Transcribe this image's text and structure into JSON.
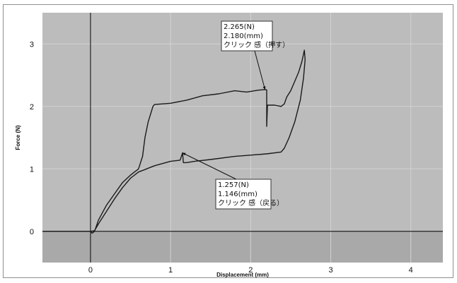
{
  "chart_data": {
    "type": "line",
    "title": "",
    "xlabel": "Displacement (mm)",
    "ylabel": "Force (N)",
    "xlim": [
      -0.6,
      4.4
    ],
    "ylim": [
      -0.5,
      3.5
    ],
    "x_ticks": [
      0,
      1,
      2,
      3,
      4
    ],
    "y_ticks": [
      0,
      1,
      2,
      3
    ],
    "x_tick_labels": [
      "0",
      "1",
      "2",
      "3",
      "4"
    ],
    "y_tick_labels": [
      "0",
      "1",
      "2",
      "3"
    ],
    "grid": true,
    "legend": "none",
    "colors": {
      "plot_background": "#bcbcbc",
      "below_zero_band": "#a9a9a9",
      "grid": "#d2d2d2",
      "series": "#1a1a1a",
      "axis_lines": "#222222"
    },
    "series": [
      {
        "points": [
          [
            -0.6,
            0.0
          ],
          [
            -0.3,
            0.0
          ],
          [
            0.0,
            0.0
          ],
          [
            0.02,
            -0.03
          ],
          [
            0.05,
            0.0
          ],
          [
            0.1,
            0.18
          ],
          [
            0.2,
            0.42
          ],
          [
            0.3,
            0.6
          ],
          [
            0.4,
            0.78
          ],
          [
            0.5,
            0.9
          ],
          [
            0.6,
            1.0
          ],
          [
            0.65,
            1.2
          ],
          [
            0.68,
            1.5
          ],
          [
            0.72,
            1.75
          ],
          [
            0.78,
            2.0
          ],
          [
            0.8,
            2.03
          ],
          [
            1.0,
            2.05
          ],
          [
            1.2,
            2.1
          ],
          [
            1.4,
            2.17
          ],
          [
            1.6,
            2.2
          ],
          [
            1.8,
            2.25
          ],
          [
            1.95,
            2.23
          ],
          [
            2.1,
            2.26
          ],
          [
            2.18,
            2.27
          ],
          [
            2.2,
            2.265
          ],
          [
            2.2,
            1.68
          ],
          [
            2.21,
            2.02
          ],
          [
            2.3,
            2.02
          ],
          [
            2.38,
            2.0
          ],
          [
            2.42,
            2.04
          ],
          [
            2.45,
            2.15
          ],
          [
            2.5,
            2.25
          ],
          [
            2.55,
            2.4
          ],
          [
            2.6,
            2.55
          ],
          [
            2.64,
            2.72
          ],
          [
            2.67,
            2.9
          ],
          [
            2.68,
            2.75
          ],
          [
            2.66,
            2.45
          ],
          [
            2.62,
            2.1
          ],
          [
            2.55,
            1.75
          ],
          [
            2.48,
            1.5
          ],
          [
            2.42,
            1.33
          ],
          [
            2.38,
            1.27
          ],
          [
            2.2,
            1.24
          ],
          [
            2.0,
            1.22
          ],
          [
            1.8,
            1.2
          ],
          [
            1.5,
            1.15
          ],
          [
            1.3,
            1.12
          ],
          [
            1.2,
            1.1
          ],
          [
            1.16,
            1.1
          ],
          [
            1.15,
            1.257
          ],
          [
            1.12,
            1.14
          ],
          [
            1.0,
            1.12
          ],
          [
            0.8,
            1.05
          ],
          [
            0.7,
            1.0
          ],
          [
            0.6,
            0.95
          ],
          [
            0.5,
            0.85
          ],
          [
            0.4,
            0.7
          ],
          [
            0.3,
            0.52
          ],
          [
            0.2,
            0.32
          ],
          [
            0.1,
            0.12
          ],
          [
            0.05,
            0.01
          ],
          [
            0.0,
            0.0
          ]
        ]
      }
    ],
    "annotations": [
      {
        "lines": [
          "2.265(N)",
          "2.180(mm)",
          "クリック 感（押す）"
        ],
        "point_x": 2.18,
        "point_y": 2.265
      },
      {
        "lines": [
          "1.257(N)",
          "1.146(mm)",
          "クリック 感（戻る）"
        ],
        "point_x": 1.146,
        "point_y": 1.257
      }
    ]
  }
}
